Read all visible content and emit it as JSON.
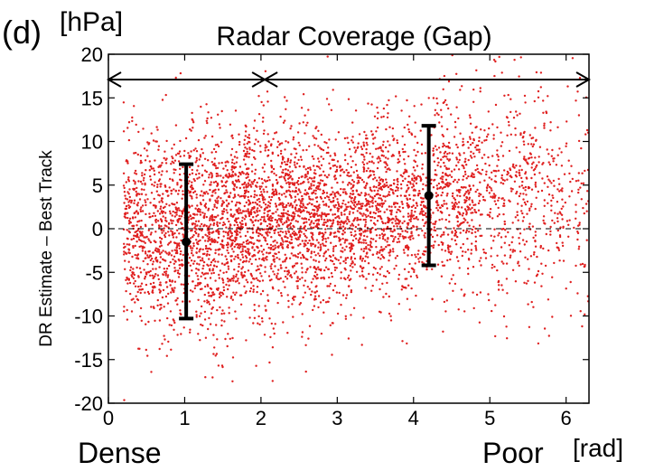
{
  "chart_data": {
    "type": "scatter",
    "panel_label": "(d)",
    "title": "Radar Coverage (Gap)",
    "y_unit": "[hPa]",
    "x_unit": "[rad]",
    "ylabel": "DR Estimate  –  Best Track",
    "x_left_label": "Dense",
    "x_right_label": "Poor",
    "xlim": [
      0,
      6.3
    ],
    "ylim": [
      -20,
      20
    ],
    "xticks": [
      0,
      1,
      2,
      3,
      4,
      5,
      6
    ],
    "yticks": [
      -20,
      -15,
      -10,
      -5,
      0,
      5,
      10,
      15,
      20
    ],
    "zero_line": "dashed",
    "point_color": "#e02020",
    "range_arrows": [
      {
        "from": 0,
        "to": 2.05,
        "y": 17.1
      },
      {
        "from": 2.05,
        "to": 6.3,
        "y": 17.1
      }
    ],
    "error_bars": [
      {
        "x": 1.02,
        "mean": -1.5,
        "low": -10.3,
        "high": 7.4
      },
      {
        "x": 4.2,
        "mean": 3.8,
        "low": -4.2,
        "high": 11.8
      }
    ],
    "scatter_density": [
      {
        "x_range": [
          0.2,
          0.8
        ],
        "mean": -0.5,
        "spread": 5.5,
        "count": 520
      },
      {
        "x_range": [
          0.8,
          1.6
        ],
        "mean": -0.5,
        "spread": 5.8,
        "count": 800
      },
      {
        "x_range": [
          1.6,
          2.4
        ],
        "mean": 0.8,
        "spread": 5.5,
        "count": 900
      },
      {
        "x_range": [
          2.4,
          3.2
        ],
        "mean": 1.2,
        "spread": 5.2,
        "count": 800
      },
      {
        "x_range": [
          3.2,
          4.0
        ],
        "mean": 2.3,
        "spread": 5.0,
        "count": 700
      },
      {
        "x_range": [
          4.0,
          4.8
        ],
        "mean": 3.5,
        "spread": 5.5,
        "count": 550
      },
      {
        "x_range": [
          4.8,
          5.6
        ],
        "mean": 4.0,
        "spread": 6.0,
        "count": 380
      },
      {
        "x_range": [
          5.6,
          6.3
        ],
        "mean": 3.5,
        "spread": 6.5,
        "count": 200
      }
    ]
  }
}
